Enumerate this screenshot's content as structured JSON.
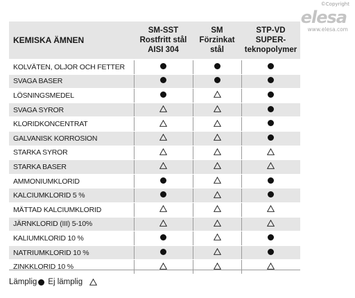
{
  "logo": {
    "copyright": "©Copyright",
    "brand": "elesa",
    "url": "www.elesa.com"
  },
  "table": {
    "header": {
      "col0": [
        "KEMISKA ÄMNEN"
      ],
      "col1": [
        "SM-SST",
        "Rostfritt stål",
        "AISI 304"
      ],
      "col2": [
        "SM",
        "Förzinkat",
        "stål"
      ],
      "col3": [
        "STP-VD",
        "SUPER-",
        "teknopolymer"
      ]
    },
    "rows": [
      {
        "name": "KOLVÄTEN, OLJOR OCH FETTER",
        "values": [
          "suitable",
          "suitable",
          "suitable"
        ]
      },
      {
        "name": "SVAGA BASER",
        "values": [
          "suitable",
          "suitable",
          "suitable"
        ]
      },
      {
        "name": "LÖSNINGSMEDEL",
        "values": [
          "suitable",
          "not_suitable",
          "suitable"
        ]
      },
      {
        "name": "SVAGA SYROR",
        "values": [
          "not_suitable",
          "not_suitable",
          "suitable"
        ]
      },
      {
        "name": "KLORIDKONCENTRAT",
        "values": [
          "not_suitable",
          "not_suitable",
          "suitable"
        ]
      },
      {
        "name": "GALVANISK KORROSION",
        "values": [
          "not_suitable",
          "not_suitable",
          "suitable"
        ]
      },
      {
        "name": "STARKA SYROR",
        "values": [
          "not_suitable",
          "not_suitable",
          "not_suitable"
        ]
      },
      {
        "name": "STARKA BASER",
        "values": [
          "not_suitable",
          "not_suitable",
          "not_suitable"
        ]
      },
      {
        "name": "AMMONIUMKLORID",
        "values": [
          "suitable",
          "not_suitable",
          "suitable"
        ]
      },
      {
        "name": "KALCIUMKLORID 5 %",
        "values": [
          "suitable",
          "not_suitable",
          "suitable"
        ]
      },
      {
        "name": "MÄTTAD KALCIUMKLORID",
        "values": [
          "not_suitable",
          "not_suitable",
          "not_suitable"
        ]
      },
      {
        "name": "JÄRNKLORID (III) 5-10%",
        "values": [
          "not_suitable",
          "not_suitable",
          "not_suitable"
        ]
      },
      {
        "name": "KALIUMKLORID 10 %",
        "values": [
          "suitable",
          "not_suitable",
          "suitable"
        ]
      },
      {
        "name": "NATRIUMKLORID 10 %",
        "values": [
          "suitable",
          "not_suitable",
          "suitable"
        ]
      },
      {
        "name": "ZINKKLORID 10 %",
        "values": [
          "not_suitable",
          "not_suitable",
          "not_suitable"
        ]
      }
    ]
  },
  "legend": {
    "suitable_label": "Lämplig",
    "not_suitable_label": "Ej lämplig"
  },
  "symbols": {
    "suitable": "filled-circle-icon",
    "not_suitable": "outline-triangle-icon"
  },
  "colors": {
    "row_stripe": "#e5e5e5",
    "mark": "#111111"
  }
}
